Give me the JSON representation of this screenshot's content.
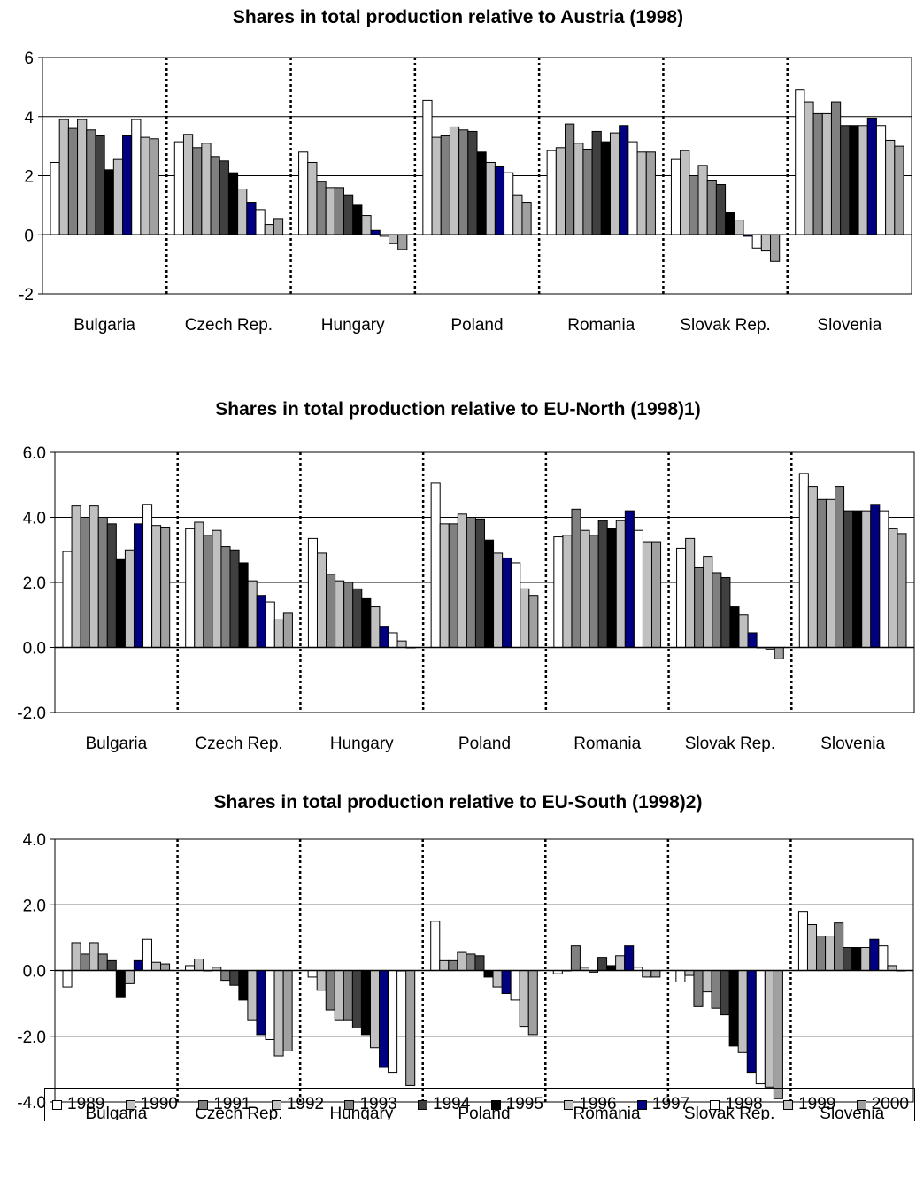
{
  "legend": {
    "years": [
      "1989",
      "1990",
      "1991",
      "1992",
      "1993",
      "1994",
      "1995",
      "1996",
      "1997",
      "1998",
      "1999",
      "2000"
    ],
    "colors": [
      "#ffffff",
      "#c0c0c0",
      "#808080",
      "#c0c0c0",
      "#808080",
      "#404040",
      "#000000",
      "#c0c0c0",
      "#000080",
      "#ffffff",
      "#c0c0c0",
      "#a0a0a0"
    ]
  },
  "chart_data": [
    {
      "type": "bar",
      "title": "Shares in total production relative to Austria (1998)",
      "categories": [
        "Bulgaria",
        "Czech Rep.",
        "Hungary",
        "Poland",
        "Romania",
        "Slovak Rep.",
        "Slovenia"
      ],
      "ylim": [
        -2,
        6
      ],
      "yticks": [
        "-2",
        "0",
        "2",
        "4",
        "6"
      ],
      "ytick_values": [
        -2,
        0,
        2,
        4,
        6
      ],
      "grid": "horizontal",
      "series": [
        {
          "name": "1989",
          "values": [
            2.45,
            3.15,
            2.8,
            4.55,
            2.85,
            2.55,
            4.9
          ]
        },
        {
          "name": "1990",
          "values": [
            3.9,
            3.4,
            2.45,
            3.3,
            2.95,
            2.85,
            4.5
          ]
        },
        {
          "name": "1991",
          "values": [
            3.6,
            2.95,
            1.8,
            3.35,
            3.75,
            2.0,
            4.1
          ]
        },
        {
          "name": "1992",
          "values": [
            3.9,
            3.1,
            1.6,
            3.65,
            3.1,
            2.35,
            4.1
          ]
        },
        {
          "name": "1993",
          "values": [
            3.55,
            2.65,
            1.6,
            3.55,
            2.9,
            1.85,
            4.5
          ]
        },
        {
          "name": "1994",
          "values": [
            3.35,
            2.5,
            1.35,
            3.5,
            3.5,
            1.7,
            3.7
          ]
        },
        {
          "name": "1995",
          "values": [
            2.2,
            2.1,
            1.0,
            2.8,
            3.15,
            0.75,
            3.7
          ]
        },
        {
          "name": "1996",
          "values": [
            2.55,
            1.55,
            0.65,
            2.45,
            3.45,
            0.5,
            3.7
          ]
        },
        {
          "name": "1997",
          "values": [
            3.35,
            1.1,
            0.15,
            2.3,
            3.7,
            -0.05,
            3.95
          ]
        },
        {
          "name": "1998",
          "values": [
            3.9,
            0.85,
            -0.05,
            2.1,
            3.15,
            -0.45,
            3.7
          ]
        },
        {
          "name": "1999",
          "values": [
            3.3,
            0.35,
            -0.3,
            1.35,
            2.8,
            -0.55,
            3.2
          ]
        },
        {
          "name": "2000",
          "values": [
            3.25,
            0.55,
            -0.5,
            1.1,
            2.8,
            -0.9,
            3.0
          ]
        }
      ]
    },
    {
      "type": "bar",
      "title": "Shares in total production relative to EU-North (1998)1)",
      "categories": [
        "Bulgaria",
        "Czech Rep.",
        "Hungary",
        "Poland",
        "Romania",
        "Slovak Rep.",
        "Slovenia"
      ],
      "ylim": [
        -2,
        6
      ],
      "yticks": [
        "-2.0",
        "0.0",
        "2.0",
        "4.0",
        "6.0"
      ],
      "ytick_values": [
        -2,
        0,
        2,
        4,
        6
      ],
      "grid": "horizontal",
      "series": [
        {
          "name": "1989",
          "values": [
            2.95,
            3.65,
            3.35,
            5.05,
            3.4,
            3.05,
            5.35
          ]
        },
        {
          "name": "1990",
          "values": [
            4.35,
            3.85,
            2.9,
            3.8,
            3.45,
            3.35,
            4.95
          ]
        },
        {
          "name": "1991",
          "values": [
            4.0,
            3.45,
            2.25,
            3.8,
            4.25,
            2.45,
            4.55
          ]
        },
        {
          "name": "1992",
          "values": [
            4.35,
            3.6,
            2.05,
            4.1,
            3.6,
            2.8,
            4.55
          ]
        },
        {
          "name": "1993",
          "values": [
            4.0,
            3.1,
            2.0,
            4.0,
            3.45,
            2.3,
            4.95
          ]
        },
        {
          "name": "1994",
          "values": [
            3.8,
            3.0,
            1.8,
            3.95,
            3.9,
            2.15,
            4.2
          ]
        },
        {
          "name": "1995",
          "values": [
            2.7,
            2.6,
            1.5,
            3.3,
            3.65,
            1.25,
            4.2
          ]
        },
        {
          "name": "1996",
          "values": [
            3.0,
            2.05,
            1.25,
            2.9,
            3.9,
            1.0,
            4.2
          ]
        },
        {
          "name": "1997",
          "values": [
            3.8,
            1.6,
            0.65,
            2.75,
            4.2,
            0.45,
            4.4
          ]
        },
        {
          "name": "1998",
          "values": [
            4.4,
            1.4,
            0.45,
            2.6,
            3.6,
            0.0,
            4.2
          ]
        },
        {
          "name": "1999",
          "values": [
            3.75,
            0.85,
            0.2,
            1.8,
            3.25,
            -0.05,
            3.65
          ]
        },
        {
          "name": "2000",
          "values": [
            3.7,
            1.05,
            0.0,
            1.6,
            3.25,
            -0.35,
            3.5
          ]
        }
      ]
    },
    {
      "type": "bar",
      "title": "Shares in total production relative to EU-South (1998)2)",
      "categories": [
        "Bulgaria",
        "Czech Rep.",
        "Hungary",
        "Poland",
        "Romania",
        "Slovak Rep.",
        "Slovenia"
      ],
      "ylim": [
        -4,
        4
      ],
      "yticks": [
        "-4.0",
        "-2.0",
        "0.0",
        "2.0",
        "4.0"
      ],
      "ytick_values": [
        -4,
        -2,
        0,
        2,
        4
      ],
      "grid": "horizontal",
      "series": [
        {
          "name": "1989",
          "values": [
            -0.5,
            0.15,
            -0.2,
            1.5,
            -0.1,
            -0.35,
            1.8
          ]
        },
        {
          "name": "1990",
          "values": [
            0.85,
            0.35,
            -0.6,
            0.3,
            0.0,
            -0.15,
            1.4
          ]
        },
        {
          "name": "1991",
          "values": [
            0.5,
            0.0,
            -1.2,
            0.3,
            0.75,
            -1.1,
            1.05
          ]
        },
        {
          "name": "1992",
          "values": [
            0.85,
            0.1,
            -1.5,
            0.55,
            0.1,
            -0.65,
            1.05
          ]
        },
        {
          "name": "1993",
          "values": [
            0.5,
            -0.3,
            -1.5,
            0.5,
            -0.05,
            -1.15,
            1.45
          ]
        },
        {
          "name": "1994",
          "values": [
            0.3,
            -0.45,
            -1.75,
            0.45,
            0.4,
            -1.35,
            0.7
          ]
        },
        {
          "name": "1995",
          "values": [
            -0.8,
            -0.9,
            -1.95,
            -0.2,
            0.15,
            -2.3,
            0.7
          ]
        },
        {
          "name": "1996",
          "values": [
            -0.4,
            -1.5,
            -2.35,
            -0.5,
            0.45,
            -2.5,
            0.7
          ]
        },
        {
          "name": "1997",
          "values": [
            0.3,
            -1.95,
            -2.95,
            -0.7,
            0.75,
            -3.1,
            0.95
          ]
        },
        {
          "name": "1998",
          "values": [
            0.95,
            -2.1,
            -3.1,
            -0.9,
            0.1,
            -3.45,
            0.75
          ]
        },
        {
          "name": "1999",
          "values": [
            0.25,
            -2.6,
            0.0,
            -1.7,
            -0.2,
            -3.55,
            0.15
          ]
        },
        {
          "name": "2000",
          "values": [
            0.2,
            -2.45,
            -3.5,
            -1.95,
            -0.2,
            -3.9,
            0.0
          ]
        }
      ]
    }
  ]
}
